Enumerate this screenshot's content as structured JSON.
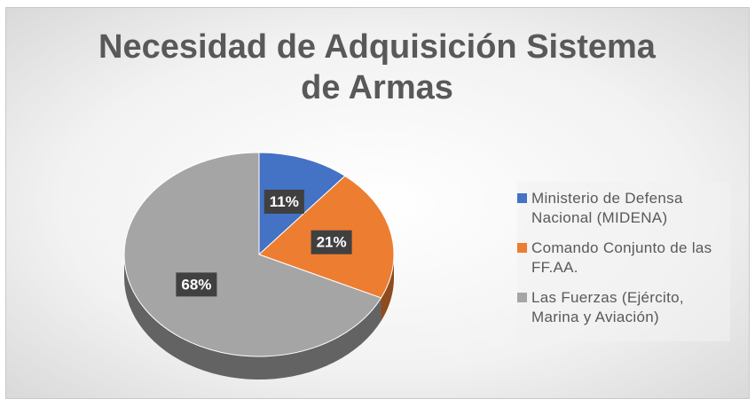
{
  "chart_data": {
    "type": "pie3d",
    "title": "Necesidad de Adquisición Sistema de Armas",
    "categories": [
      "Ministerio de Defensa Nacional (MIDENA)",
      "Comando Conjunto de las FF.AA.",
      "Las Fuerzas (Ejército, Marina y Aviación)"
    ],
    "values": [
      11,
      21,
      68
    ],
    "value_labels": [
      "11%",
      "21%",
      "68%"
    ],
    "colors": [
      "#4472c4",
      "#ed7d31",
      "#a5a5a5"
    ],
    "legend": "right"
  }
}
